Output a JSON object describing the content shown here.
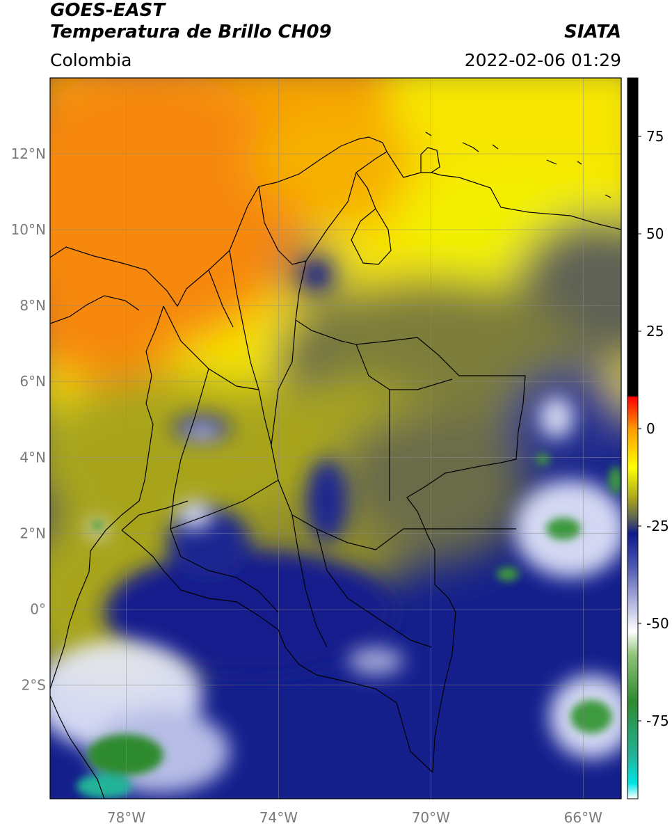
{
  "header": {
    "satellite": "GOES-EAST",
    "product": "Temperatura de Brillo CH09",
    "source": "SIATA",
    "region": "Colombia",
    "timestamp": "2022-02-06 01:29"
  },
  "map": {
    "lon_range": [
      -80,
      -65
    ],
    "lat_range": [
      -5,
      14
    ],
    "lat_ticks": [
      {
        "value": 12,
        "label": "12°N"
      },
      {
        "value": 10,
        "label": "10°N"
      },
      {
        "value": 8,
        "label": "8°N"
      },
      {
        "value": 6,
        "label": "6°N"
      },
      {
        "value": 4,
        "label": "4°N"
      },
      {
        "value": 2,
        "label": "2°N"
      },
      {
        "value": 0,
        "label": "0°"
      },
      {
        "value": -2,
        "label": "2°S"
      }
    ],
    "lon_ticks": [
      {
        "value": -78,
        "label": "78°W"
      },
      {
        "value": -74,
        "label": "74°W"
      },
      {
        "value": -70,
        "label": "70°W"
      },
      {
        "value": -66,
        "label": "66°W"
      }
    ],
    "grid": true,
    "colors": {
      "warm_orange": "#f6880e",
      "yellow": "#f7f000",
      "olive": "#a7a41d",
      "gray": "#5e6254",
      "deep_blue": "#141f8c",
      "white": "#f2f2ff",
      "green": "#2e8a2e",
      "coast": "#000000"
    }
  },
  "colorbar": {
    "range": [
      -95,
      90
    ],
    "ticks": [
      {
        "value": 75,
        "label": "75"
      },
      {
        "value": 50,
        "label": "50"
      },
      {
        "value": 25,
        "label": "25"
      },
      {
        "value": 0,
        "label": "0"
      },
      {
        "value": -25,
        "label": "-25"
      },
      {
        "value": -50,
        "label": "-50"
      },
      {
        "value": -75,
        "label": "-75"
      }
    ],
    "stops": [
      {
        "value": -95,
        "color": "#ffffff"
      },
      {
        "value": -91,
        "color": "#00e5e5"
      },
      {
        "value": -84,
        "color": "#23b399"
      },
      {
        "value": -70,
        "color": "#2e8a2e"
      },
      {
        "value": -58,
        "color": "#8fc47a"
      },
      {
        "value": -52,
        "color": "#ffffff"
      },
      {
        "value": -45,
        "color": "#b5b8e0"
      },
      {
        "value": -35,
        "color": "#4a55b0"
      },
      {
        "value": -27,
        "color": "#0e1a8c"
      },
      {
        "value": -23,
        "color": "#5e6254"
      },
      {
        "value": -18,
        "color": "#a7a41d"
      },
      {
        "value": -10,
        "color": "#ffff00"
      },
      {
        "value": 0,
        "color": "#ff9900"
      },
      {
        "value": 8,
        "color": "#ff0000"
      },
      {
        "value": 8.5,
        "color": "#000000"
      },
      {
        "value": 90,
        "color": "#000000"
      }
    ]
  }
}
